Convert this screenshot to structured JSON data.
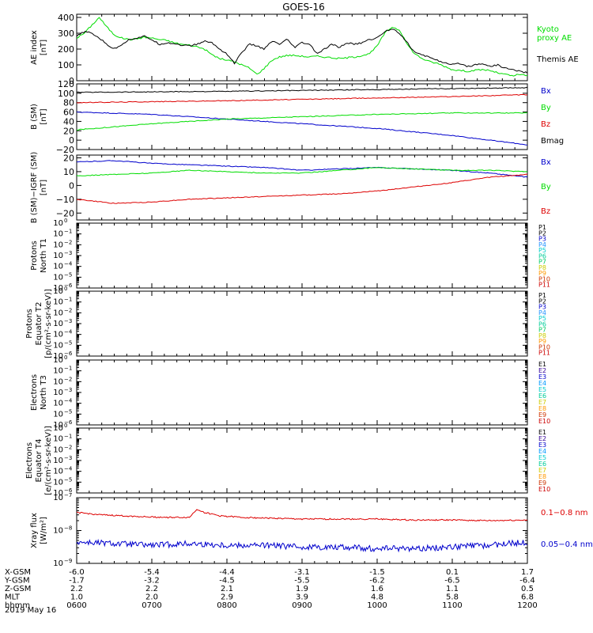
{
  "title": "GOES-16",
  "colors": {
    "black": "#000000",
    "red": "#dd0000",
    "green": "#00dd00",
    "blue": "#0000cc",
    "proton_labels": [
      "#000000",
      "#000000",
      "#0000cc",
      "#1e90ff",
      "#00cccc",
      "#00cc99",
      "#00cc66",
      "#cccc00",
      "#ff9900",
      "#cc3300",
      "#cc0000",
      "#990000"
    ],
    "electron_labels": [
      "#000000",
      "#330099",
      "#0000cc",
      "#0099ff",
      "#00cccc",
      "#00cc99",
      "#cccc00",
      "#ff9900",
      "#cc3300",
      "#cc0000"
    ]
  },
  "chart_data": [
    {
      "id": "ae",
      "type": "line",
      "ylabel": [
        "AE index",
        "[nT]"
      ],
      "ylim": [
        0,
        420
      ],
      "yticks": [
        {
          "v": 0,
          "label": "0"
        },
        {
          "v": 100,
          "label": "100"
        },
        {
          "v": 200,
          "label": "200"
        },
        {
          "v": 300,
          "label": "300"
        },
        {
          "v": 400,
          "label": "400"
        }
      ],
      "series": [
        {
          "name": "Kyoto proxy AE",
          "color": "green",
          "label_lines": [
            "Kyoto",
            "proxy AE"
          ],
          "x": [
            0.0,
            0.1,
            0.2,
            0.3,
            0.4,
            0.5,
            0.6,
            0.7,
            0.8,
            0.9,
            1.0,
            1.1,
            1.2,
            1.3,
            1.4,
            1.5,
            1.6,
            1.7,
            1.8,
            1.9,
            2.0,
            2.1,
            2.2,
            2.3,
            2.4,
            2.5,
            2.6,
            2.7,
            2.8,
            2.9,
            3.0,
            3.1,
            3.2,
            3.3,
            3.4,
            3.5,
            3.6,
            3.7,
            3.8,
            3.9,
            4.0,
            4.1,
            4.2,
            4.3,
            4.4,
            4.5,
            4.6,
            4.7,
            4.8,
            4.9,
            5.0,
            5.1,
            5.2,
            5.3,
            5.4,
            5.5,
            5.6,
            5.7,
            5.8,
            5.9,
            6.0
          ],
          "y": [
            270,
            300,
            350,
            400,
            340,
            290,
            270,
            260,
            265,
            275,
            270,
            260,
            255,
            240,
            230,
            225,
            215,
            200,
            165,
            140,
            130,
            120,
            100,
            80,
            40,
            80,
            130,
            150,
            160,
            160,
            155,
            150,
            155,
            150,
            145,
            140,
            145,
            150,
            160,
            170,
            220,
            300,
            340,
            320,
            230,
            170,
            140,
            120,
            110,
            90,
            70,
            65,
            60,
            65,
            70,
            65,
            50,
            40,
            30,
            40,
            30
          ]
        },
        {
          "name": "Themis AE",
          "color": "black",
          "label_lines": [
            "Themis AE"
          ],
          "x": [
            0.0,
            0.1,
            0.2,
            0.3,
            0.4,
            0.5,
            0.6,
            0.7,
            0.8,
            0.9,
            1.0,
            1.1,
            1.2,
            1.3,
            1.4,
            1.5,
            1.6,
            1.7,
            1.8,
            1.9,
            2.0,
            2.1,
            2.2,
            2.3,
            2.4,
            2.5,
            2.6,
            2.7,
            2.8,
            2.9,
            3.0,
            3.1,
            3.2,
            3.3,
            3.4,
            3.5,
            3.6,
            3.7,
            3.8,
            3.9,
            4.0,
            4.1,
            4.2,
            4.3,
            4.4,
            4.5,
            4.6,
            4.7,
            4.8,
            4.9,
            5.0,
            5.1,
            5.2,
            5.3,
            5.4,
            5.5,
            5.6,
            5.7,
            5.8,
            5.9,
            6.0
          ],
          "y": [
            280,
            310,
            300,
            270,
            230,
            200,
            230,
            260,
            270,
            280,
            260,
            230,
            240,
            235,
            225,
            220,
            230,
            250,
            240,
            200,
            170,
            110,
            180,
            230,
            220,
            200,
            250,
            230,
            260,
            210,
            240,
            230,
            170,
            200,
            230,
            210,
            240,
            230,
            240,
            260,
            270,
            310,
            330,
            300,
            240,
            180,
            160,
            150,
            130,
            110,
            100,
            110,
            90,
            100,
            110,
            90,
            100,
            80,
            70,
            60,
            50
          ]
        }
      ]
    },
    {
      "id": "bsm",
      "type": "line",
      "ylabel": [
        "B (SM)",
        "[nT]"
      ],
      "ylim": [
        -20,
        120
      ],
      "yticks": [
        {
          "v": -20,
          "label": "−20"
        },
        {
          "v": 0,
          "label": "0"
        },
        {
          "v": 20,
          "label": "20"
        },
        {
          "v": 40,
          "label": "40"
        },
        {
          "v": 60,
          "label": "60"
        },
        {
          "v": 80,
          "label": "80"
        },
        {
          "v": 100,
          "label": "100"
        },
        {
          "v": 120,
          "label": "120"
        }
      ],
      "series": [
        {
          "name": "Bx",
          "color": "blue",
          "x": [
            0,
            1,
            2,
            3,
            4,
            5,
            6
          ],
          "y": [
            60,
            55,
            45,
            35,
            25,
            10,
            -10
          ]
        },
        {
          "name": "By",
          "color": "green",
          "x": [
            0,
            1,
            2,
            3,
            4,
            5,
            6
          ],
          "y": [
            22,
            35,
            45,
            50,
            55,
            58,
            58
          ]
        },
        {
          "name": "Bz",
          "color": "red",
          "x": [
            0,
            1,
            2,
            3,
            4,
            5,
            6
          ],
          "y": [
            80,
            82,
            84,
            87,
            90,
            93,
            97
          ]
        },
        {
          "name": "Bmag",
          "color": "black",
          "x": [
            0,
            1,
            2,
            3,
            4,
            5,
            6
          ],
          "y": [
            102,
            103,
            104,
            106,
            108,
            110,
            112
          ]
        }
      ]
    },
    {
      "id": "bigrf",
      "type": "line",
      "ylabel": [
        "B (SM)−IGRF (SM)",
        "[nT]"
      ],
      "ylim": [
        -25,
        22
      ],
      "yticks": [
        {
          "v": -20,
          "label": "−20"
        },
        {
          "v": -10,
          "label": "−10"
        },
        {
          "v": 0,
          "label": "0"
        },
        {
          "v": 10,
          "label": "10"
        },
        {
          "v": 20,
          "label": "20"
        }
      ],
      "series": [
        {
          "name": "Bx",
          "color": "blue",
          "x": [
            0.0,
            0.5,
            1.0,
            1.5,
            2.0,
            2.5,
            3.0,
            3.5,
            4.0,
            4.5,
            5.0,
            5.5,
            6.0
          ],
          "y": [
            17,
            18,
            16,
            15,
            14,
            13,
            11,
            12,
            13,
            12,
            11,
            9,
            6
          ]
        },
        {
          "name": "By",
          "color": "green",
          "x": [
            0.0,
            0.5,
            1.0,
            1.5,
            2.0,
            2.5,
            3.0,
            3.5,
            4.0,
            4.5,
            5.0,
            5.5,
            6.0
          ],
          "y": [
            7,
            8,
            9,
            11,
            10,
            9,
            9,
            11,
            13,
            12,
            11,
            11,
            10
          ]
        },
        {
          "name": "Bz",
          "color": "red",
          "x": [
            0.0,
            0.5,
            1.0,
            1.5,
            2.0,
            2.5,
            3.0,
            3.5,
            4.0,
            4.5,
            5.0,
            5.5,
            6.0
          ],
          "y": [
            -10,
            -13,
            -12,
            -10,
            -9,
            -8,
            -7,
            -6,
            -4,
            -1,
            2,
            6,
            8
          ]
        }
      ]
    },
    {
      "id": "pn",
      "type": "line",
      "ylabel": [
        "Protons",
        "North T1"
      ],
      "ylim": [
        -6,
        0
      ],
      "log": true,
      "yticks_log": [
        0,
        -1,
        -2,
        -3,
        -4,
        -5,
        -6
      ],
      "channels": [
        "P1",
        "P2",
        "P3",
        "P4",
        "P5",
        "P6",
        "P7",
        "P8",
        "P9",
        "P10",
        "P11"
      ],
      "channel_color_key": "proton_labels"
    },
    {
      "id": "pe",
      "type": "line",
      "ylabel": [
        "Protons",
        "Equator T2",
        "[p/(cm²-s-sr-keV)]"
      ],
      "ylim": [
        -6,
        0
      ],
      "log": true,
      "yticks_log": [
        0,
        -1,
        -2,
        -3,
        -4,
        -5,
        -6
      ],
      "channels": [
        "P1",
        "P2",
        "P3",
        "P4",
        "P5",
        "P6",
        "P7",
        "P8",
        "P9",
        "P10",
        "P11"
      ],
      "channel_color_key": "proton_labels"
    },
    {
      "id": "en",
      "type": "line",
      "ylabel": [
        "Electrons",
        "North T3"
      ],
      "ylim": [
        -6,
        0
      ],
      "log": true,
      "yticks_log": [
        0,
        -1,
        -2,
        -3,
        -4,
        -5,
        -6
      ],
      "channels": [
        "E1",
        "E2",
        "E3",
        "E4",
        "E5",
        "E6",
        "E7",
        "E8",
        "E9",
        "E10"
      ],
      "channel_color_key": "electron_labels"
    },
    {
      "id": "ee",
      "type": "line",
      "ylabel": [
        "Electrons",
        "Equator T4",
        "[e/(cm²-s-sr-keV)]"
      ],
      "ylim": [
        -6,
        0
      ],
      "log": true,
      "yticks_log": [
        0,
        -1,
        -2,
        -3,
        -4,
        -5,
        -6
      ],
      "channels": [
        "E1",
        "E2",
        "E3",
        "E4",
        "E5",
        "E6",
        "E7",
        "E8",
        "E9",
        "E10"
      ],
      "channel_color_key": "electron_labels"
    },
    {
      "id": "xray",
      "type": "line",
      "ylabel": [
        "Xray flux",
        "[W/m²]"
      ],
      "ylim": [
        -9,
        -7
      ],
      "log": true,
      "yticks_log": [
        -7,
        -8,
        -9
      ],
      "series": [
        {
          "name": "0.1−0.8 nm",
          "color": "red",
          "x": [
            0.0,
            0.3,
            0.6,
            0.9,
            1.2,
            1.5,
            1.6,
            1.7,
            1.9,
            2.2,
            2.5,
            3.0,
            3.5,
            4.0,
            4.5,
            5.0,
            5.5,
            6.0
          ],
          "y": [
            -7.45,
            -7.52,
            -7.55,
            -7.58,
            -7.6,
            -7.6,
            -7.35,
            -7.45,
            -7.55,
            -7.6,
            -7.62,
            -7.65,
            -7.65,
            -7.65,
            -7.68,
            -7.68,
            -7.7,
            -7.68
          ]
        },
        {
          "name": "0.05−0.4 nm",
          "color": "blue",
          "x": [
            0.0,
            0.5,
            1.0,
            1.5,
            2.0,
            2.5,
            3.0,
            3.5,
            4.0,
            4.5,
            5.0,
            5.5,
            6.0
          ],
          "y": [
            -8.35,
            -8.4,
            -8.45,
            -8.4,
            -8.45,
            -8.45,
            -8.5,
            -8.5,
            -8.55,
            -8.55,
            -8.5,
            -8.45,
            -8.35
          ]
        }
      ]
    }
  ],
  "x_axis": {
    "rows": [
      {
        "name": "X-GSM",
        "values": [
          "-6.0",
          "-5.4",
          "-4.4",
          "-3.1",
          "-1.5",
          "0.1",
          "1.7"
        ]
      },
      {
        "name": "Y-GSM",
        "values": [
          "-1.7",
          "-3.2",
          "-4.5",
          "-5.5",
          "-6.2",
          "-6.5",
          "-6.4"
        ]
      },
      {
        "name": "Z-GSM",
        "values": [
          "2.2",
          "2.2",
          "2.1",
          "1.9",
          "1.6",
          "1.1",
          "0.5"
        ]
      },
      {
        "name": "MLT",
        "values": [
          "1.0",
          "2.0",
          "2.9",
          "3.9",
          "4.8",
          "5.8",
          "6.8"
        ]
      },
      {
        "name": "hhmm",
        "values": [
          "0600",
          "0700",
          "0800",
          "0900",
          "1000",
          "1100",
          "1200"
        ]
      }
    ],
    "date": "2019 May 16"
  }
}
